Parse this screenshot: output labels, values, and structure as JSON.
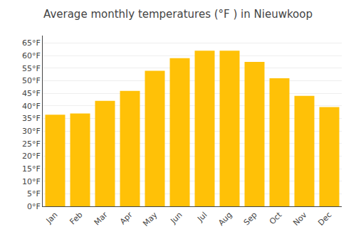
{
  "chart_data": {
    "type": "bar",
    "title": "Average monthly temperatures (°F ) in Nieuwkoop",
    "categories": [
      "Jan",
      "Feb",
      "Mar",
      "Apr",
      "May",
      "Jun",
      "Jul",
      "Aug",
      "Sep",
      "Oct",
      "Nov",
      "Dec"
    ],
    "values": [
      36.5,
      37.0,
      42.0,
      46.0,
      54.0,
      59.0,
      62.0,
      62.0,
      57.5,
      51.0,
      44.0,
      39.5
    ],
    "color": "#FFC107",
    "ylim": [
      0,
      68
    ],
    "yticks": [
      {
        "value": 0,
        "label": "0°F"
      },
      {
        "value": 5,
        "label": "5°F"
      },
      {
        "value": 10,
        "label": "10°F"
      },
      {
        "value": 15,
        "label": "15°F"
      },
      {
        "value": 20,
        "label": "20°F"
      },
      {
        "value": 25,
        "label": "25°F"
      },
      {
        "value": 30,
        "label": "30°F"
      },
      {
        "value": 35,
        "label": "35°F"
      },
      {
        "value": 40,
        "label": "40°F"
      },
      {
        "value": 45,
        "label": "45°F"
      },
      {
        "value": 50,
        "label": "50°F"
      },
      {
        "value": 55,
        "label": "55°F"
      },
      {
        "value": 60,
        "label": "60°F"
      },
      {
        "value": 65,
        "label": "65°F"
      }
    ],
    "grid": true
  }
}
